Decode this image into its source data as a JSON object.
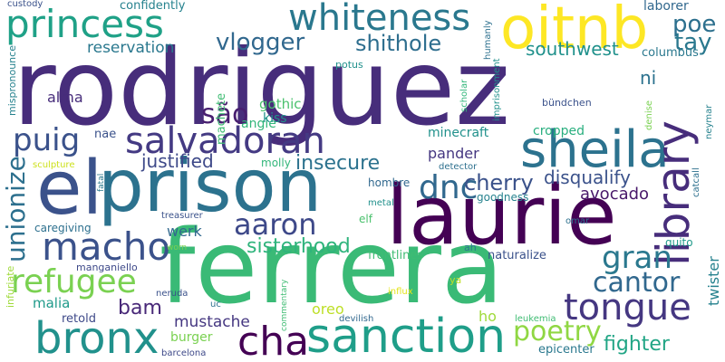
{
  "background": "#ffffff",
  "words": [
    {
      "text": "rodriguez",
      "color": "#472d7b"
    },
    {
      "text": "ferrera",
      "color": "#3aba76"
    },
    {
      "text": "prison",
      "color": "#2c728e"
    },
    {
      "text": "laurie",
      "color": "#440154"
    },
    {
      "text": "el",
      "color": "#3b528b"
    },
    {
      "text": "oitnb",
      "color": "#fde725"
    },
    {
      "text": "sanction",
      "color": "#1f9e89"
    },
    {
      "text": "sheila",
      "color": "#2c728e"
    },
    {
      "text": "library",
      "color": "#472d7b"
    },
    {
      "text": "princess",
      "color": "#1fa187"
    },
    {
      "text": "whiteness",
      "color": "#2a788e"
    },
    {
      "text": "bronx",
      "color": "#21918c"
    },
    {
      "text": "macho",
      "color": "#3b528b"
    },
    {
      "text": "salvadoran",
      "color": "#443a83"
    },
    {
      "text": "tongue",
      "color": "#453781"
    },
    {
      "text": "refugee",
      "color": "#7ad151"
    },
    {
      "text": "aaron",
      "color": "#3e4989"
    },
    {
      "text": "cha",
      "color": "#440154"
    },
    {
      "text": "poetry",
      "color": "#90d743"
    },
    {
      "text": "gran",
      "color": "#2a788e"
    },
    {
      "text": "cantor",
      "color": "#31688e"
    },
    {
      "text": "dnc",
      "color": "#31688e"
    },
    {
      "text": "puig",
      "color": "#3b528b"
    },
    {
      "text": "unionize",
      "color": "#2d708e"
    },
    {
      "text": "são",
      "color": "#481f70"
    },
    {
      "text": "poe",
      "color": "#2d708e"
    },
    {
      "text": "tay",
      "color": "#2a788e"
    },
    {
      "text": "vlogger",
      "color": "#31688e"
    },
    {
      "text": "shithole",
      "color": "#2e6e8e"
    },
    {
      "text": "southwest",
      "color": "#21918c"
    },
    {
      "text": "cherry",
      "color": "#3b528b"
    },
    {
      "text": "insecure",
      "color": "#2c728e"
    },
    {
      "text": "sisterhood",
      "color": "#2fb47c"
    },
    {
      "text": "fighter",
      "color": "#21a585"
    },
    {
      "text": "justified",
      "color": "#3e4989"
    },
    {
      "text": "bam",
      "color": "#482878"
    },
    {
      "text": "ni",
      "color": "#2c728e"
    },
    {
      "text": "disqualify",
      "color": "#3b528b"
    },
    {
      "text": "avocado",
      "color": "#48186a"
    },
    {
      "text": "mustache",
      "color": "#453781"
    },
    {
      "text": "reservation",
      "color": "#2a788e"
    },
    {
      "text": "twister",
      "color": "#26828e"
    },
    {
      "text": "werk",
      "color": "#31688e"
    },
    {
      "text": "alma",
      "color": "#472d7b"
    },
    {
      "text": "pander",
      "color": "#453781"
    },
    {
      "text": "oreo",
      "color": "#bddf26"
    },
    {
      "text": "ho",
      "color": "#9fda3a"
    },
    {
      "text": "malia",
      "color": "#1f9a8a"
    },
    {
      "text": "gothic",
      "color": "#4ac16d"
    },
    {
      "text": "angie",
      "color": "#32b67a"
    },
    {
      "text": "kiss",
      "color": "#21918c"
    },
    {
      "text": "confidently",
      "color": "#26828e"
    },
    {
      "text": "laborer",
      "color": "#31688e"
    },
    {
      "text": "burger",
      "color": "#7ad151"
    },
    {
      "text": "machete",
      "color": "#3fbc73"
    },
    {
      "text": "minecraft",
      "color": "#21918c"
    },
    {
      "text": "cropped",
      "color": "#29af7f"
    },
    {
      "text": "nae",
      "color": "#3b528b"
    },
    {
      "text": "columbus",
      "color": "#2a788e"
    },
    {
      "text": "retold",
      "color": "#3e4989"
    },
    {
      "text": "epicenter",
      "color": "#2a788e"
    },
    {
      "text": "molly",
      "color": "#32b67a"
    },
    {
      "text": "goodness",
      "color": "#26828e"
    },
    {
      "text": "frontlines",
      "color": "#3fbc73"
    },
    {
      "text": "naturalize",
      "color": "#3b528b"
    },
    {
      "text": "caregiving",
      "color": "#2d708e"
    },
    {
      "text": "elf",
      "color": "#4ac16d"
    },
    {
      "text": "hombre",
      "color": "#31688e"
    },
    {
      "text": "quito",
      "color": "#1f9a8a"
    },
    {
      "text": "manganiello",
      "color": "#3e4989"
    },
    {
      "text": "custody",
      "color": "#3b528b"
    },
    {
      "text": "mispronounce",
      "color": "#26828e"
    },
    {
      "text": "potus",
      "color": "#21918c"
    },
    {
      "text": "humanly",
      "color": "#2d708e"
    },
    {
      "text": "scholar",
      "color": "#32b67a"
    },
    {
      "text": "imprisonment",
      "color": "#21918c"
    },
    {
      "text": "bündchen",
      "color": "#3b528b"
    },
    {
      "text": "denise",
      "color": "#7ad151"
    },
    {
      "text": "neymar",
      "color": "#26828e"
    },
    {
      "text": "catcall",
      "color": "#2d708e"
    },
    {
      "text": "sculpture",
      "color": "#cde11d"
    },
    {
      "text": "fatal",
      "color": "#2a788e"
    },
    {
      "text": "detector",
      "color": "#2d708e"
    },
    {
      "text": "metal",
      "color": "#21918c"
    },
    {
      "text": "treasurer",
      "color": "#3b528b"
    },
    {
      "text": "omar",
      "color": "#2d708e"
    },
    {
      "text": "worn",
      "color": "#7ad151"
    },
    {
      "text": "infuriate",
      "color": "#9fda3a"
    },
    {
      "text": "ah",
      "color": "#2a788e"
    },
    {
      "text": "ya",
      "color": "#bddf26"
    },
    {
      "text": "influx",
      "color": "#e3e418"
    },
    {
      "text": "commentary",
      "color": "#3fbc73"
    },
    {
      "text": "devilish",
      "color": "#31688e"
    },
    {
      "text": "leukemia",
      "color": "#3fbc73"
    },
    {
      "text": "neruda",
      "color": "#3b528b"
    },
    {
      "text": "uc",
      "color": "#2d708e"
    },
    {
      "text": "barcelona",
      "color": "#3e4989"
    }
  ]
}
